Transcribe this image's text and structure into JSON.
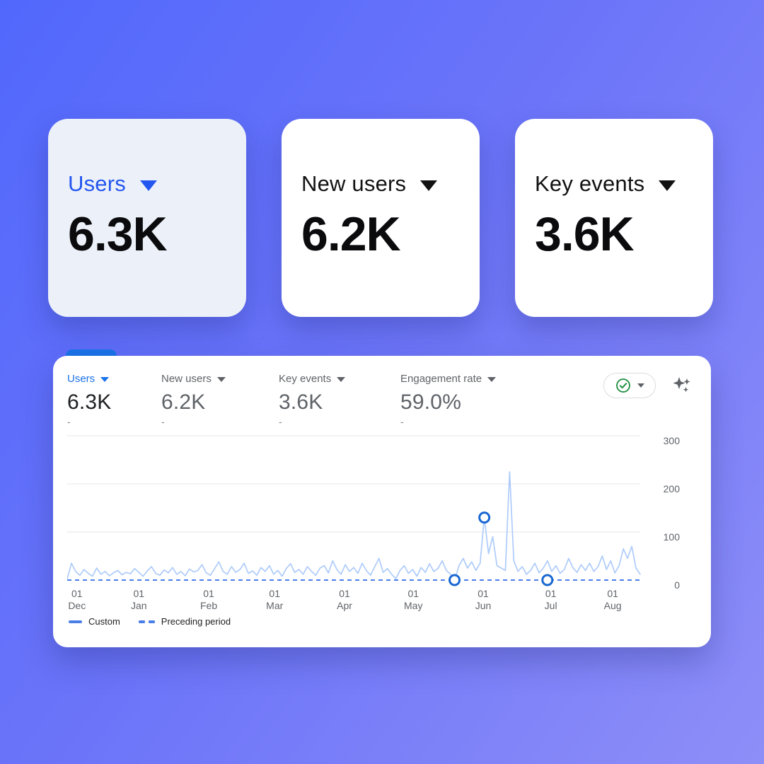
{
  "background": {
    "gradient_from": "#5168fc",
    "gradient_to": "#8e8ef8"
  },
  "summary_cards": [
    {
      "label": "Users",
      "value": "6.3K",
      "accent": "#2456f0",
      "highlighted": true
    },
    {
      "label": "New users",
      "value": "6.2K",
      "accent": "#121212",
      "highlighted": false
    },
    {
      "label": "Key events",
      "value": "3.6K",
      "accent": "#121212",
      "highlighted": false
    }
  ],
  "panel": {
    "metrics": [
      {
        "label": "Users",
        "value": "6.3K",
        "dash": "-",
        "active": true
      },
      {
        "label": "New users",
        "value": "6.2K",
        "dash": "-",
        "active": false
      },
      {
        "label": "Key events",
        "value": "3.6K",
        "dash": "-",
        "active": false
      },
      {
        "label": "Engagement rate",
        "value": "59.0%",
        "dash": "-",
        "active": false
      }
    ],
    "toolbar": {
      "status_button_icon": "check-circle-icon",
      "status_check_color": "#1e8e3e",
      "dropdown_icon": "chevron-down-icon",
      "insights_icon": "sparkle-icon",
      "icon_color": "#5f6368"
    },
    "tab_color": "#1a73e8"
  },
  "chart_data": {
    "type": "line",
    "title": "",
    "xlabel": "",
    "ylabel": "",
    "ylim": [
      0,
      300
    ],
    "y_ticks": [
      300,
      200,
      100,
      0
    ],
    "grid": true,
    "legend_position": "bottom-left",
    "x_ticks": [
      {
        "pos": 0.017,
        "line1": "01",
        "line2": "Dec"
      },
      {
        "pos": 0.125,
        "line1": "01",
        "line2": "Jan"
      },
      {
        "pos": 0.247,
        "line1": "01",
        "line2": "Feb"
      },
      {
        "pos": 0.362,
        "line1": "01",
        "line2": "Mar"
      },
      {
        "pos": 0.484,
        "line1": "01",
        "line2": "Apr"
      },
      {
        "pos": 0.604,
        "line1": "01",
        "line2": "May"
      },
      {
        "pos": 0.726,
        "line1": "01",
        "line2": "Jun"
      },
      {
        "pos": 0.844,
        "line1": "01",
        "line2": "Jul"
      },
      {
        "pos": 0.952,
        "line1": "01",
        "line2": "Aug"
      }
    ],
    "series": [
      {
        "name": "Custom",
        "style": "solid",
        "color": "#aecbfa",
        "values": [
          2,
          35,
          18,
          10,
          22,
          14,
          8,
          25,
          12,
          18,
          9,
          15,
          20,
          11,
          16,
          13,
          24,
          16,
          8,
          19,
          28,
          14,
          10,
          21,
          15,
          26,
          12,
          18,
          9,
          23,
          17,
          20,
          32,
          15,
          10,
          24,
          38,
          18,
          12,
          28,
          16,
          22,
          35,
          14,
          19,
          10,
          26,
          18,
          30,
          12,
          20,
          8,
          24,
          34,
          16,
          22,
          12,
          28,
          18,
          10,
          25,
          30,
          15,
          40,
          22,
          12,
          32,
          18,
          26,
          14,
          35,
          20,
          10,
          28,
          45,
          16,
          24,
          12,
          3,
          20,
          30,
          14,
          22,
          8,
          26,
          16,
          34,
          18,
          24,
          40,
          20,
          12,
          2,
          30,
          45,
          25,
          38,
          20,
          35,
          130,
          55,
          90,
          30,
          25,
          20,
          225,
          40,
          18,
          28,
          12,
          20,
          35,
          15,
          25,
          40,
          18,
          30,
          14,
          22,
          45,
          26,
          16,
          32,
          20,
          35,
          18,
          28,
          50,
          22,
          40,
          15,
          30,
          65,
          45,
          70,
          25,
          12
        ]
      },
      {
        "name": "Preceding period",
        "style": "dashed",
        "color": "#4a7fe8",
        "baseline": 0
      }
    ],
    "markers": [
      {
        "series": "Custom",
        "x_frac": 0.728,
        "value": 130
      },
      {
        "series": "Preceding period",
        "x_frac": 0.676,
        "value": 0
      },
      {
        "series": "Preceding period",
        "x_frac": 0.838,
        "value": 0
      }
    ],
    "marker_color": "#1967d2",
    "legend": [
      {
        "label": "Custom",
        "style": "solid"
      },
      {
        "label": "Preceding period",
        "style": "dashed"
      }
    ]
  }
}
